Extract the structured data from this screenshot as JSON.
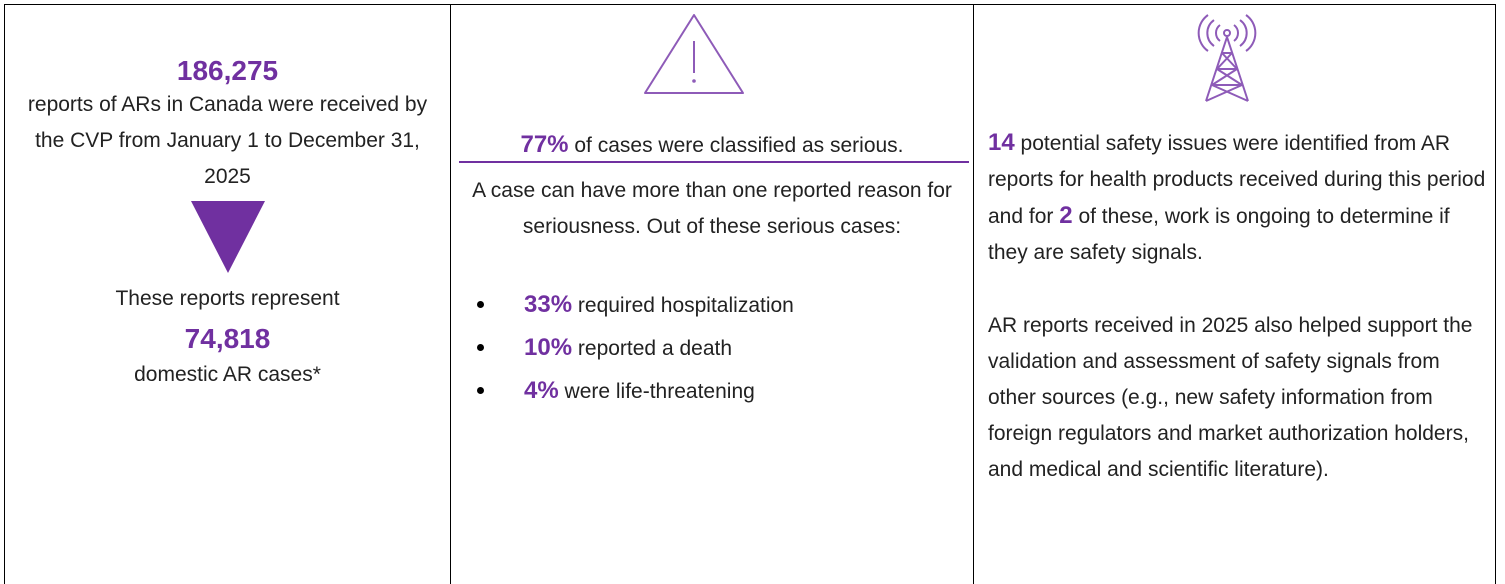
{
  "summary": {
    "reports": {
      "number": "186,275",
      "text": "reports of ARs in Canada were received by the CVP from January 1 to December 31, 2025",
      "lead": "These reports represent",
      "cases_number": "74,818",
      "cases_text": "domestic AR cases*"
    },
    "seriousness": {
      "headline_number": "77%",
      "headline_text": "of cases were classified as serious.",
      "note": "A case can have more than one reported reason for seriousness. Out of these serious cases:",
      "bullets": [
        {
          "number": "33%",
          "text": "required hospitalization"
        },
        {
          "number": "10%",
          "text": "reported a death"
        },
        {
          "number": "4%",
          "text": "were life-threatening"
        }
      ]
    },
    "signals": {
      "p1_number": "14",
      "p1_text_a": "potential safety issues were identified from AR reports for health products received during this period and for",
      "p1_number2": "2",
      "p1_text_b": "of these, work is ongoing to determine if they are safety signals.",
      "p2": "AR reports received in 2025 also helped support the validation and assessment of safety signals from other sources (e.g., new safety information from foreign regulators and market authorization holders, and medical and scientific literature)."
    }
  }
}
